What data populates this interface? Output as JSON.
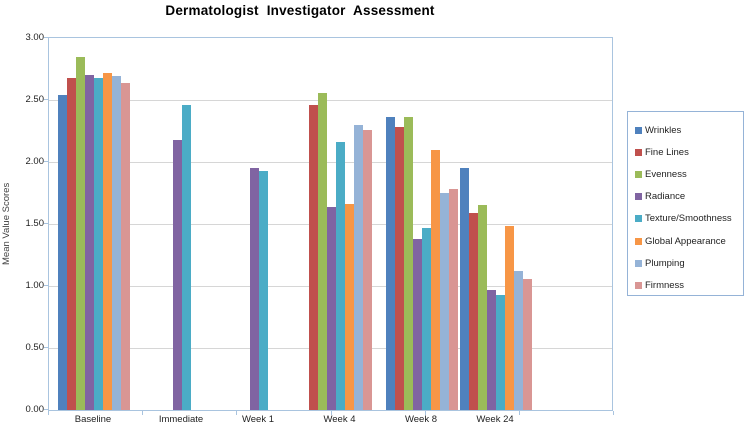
{
  "chart_data": {
    "type": "bar",
    "title": "Dermatologist Investigator Assessment",
    "ylabel": "Mean Value Scores",
    "xlabel": "",
    "categories": [
      "Baseline",
      "Immediate",
      "Week 1",
      "Week 4",
      "Week 8",
      "Week 24"
    ],
    "series": [
      {
        "name": "Wrinkles",
        "color": "#4F81BD",
        "values": [
          2.54,
          null,
          null,
          null,
          2.36,
          1.95
        ]
      },
      {
        "name": "Fine Lines",
        "color": "#C0504D",
        "values": [
          2.68,
          null,
          null,
          2.46,
          2.28,
          1.59
        ]
      },
      {
        "name": "Evenness",
        "color": "#9BBB59",
        "values": [
          2.85,
          null,
          null,
          2.56,
          2.36,
          1.65
        ]
      },
      {
        "name": "Radiance",
        "color": "#8064A2",
        "values": [
          2.7,
          2.18,
          1.95,
          1.64,
          1.38,
          0.97
        ]
      },
      {
        "name": "Texture/Smoothness",
        "color": "#4BACC6",
        "values": [
          2.68,
          2.46,
          1.93,
          2.16,
          1.47,
          0.93
        ]
      },
      {
        "name": "Global Appearance",
        "color": "#F79646",
        "values": [
          2.72,
          null,
          null,
          1.66,
          2.1,
          1.48
        ]
      },
      {
        "name": "Plumping",
        "color": "#95B3D7",
        "values": [
          2.69,
          null,
          null,
          2.3,
          1.75,
          1.12
        ]
      },
      {
        "name": "Firmness",
        "color": "#D99694",
        "values": [
          2.64,
          null,
          null,
          2.26,
          1.78,
          1.06
        ]
      }
    ],
    "ylim": [
      0,
      3
    ],
    "yticks": [
      "3.00",
      "2.50",
      "2.00",
      "1.50",
      "1.00",
      "0.50",
      "0.00"
    ],
    "grid": true,
    "legend_position": "right"
  }
}
